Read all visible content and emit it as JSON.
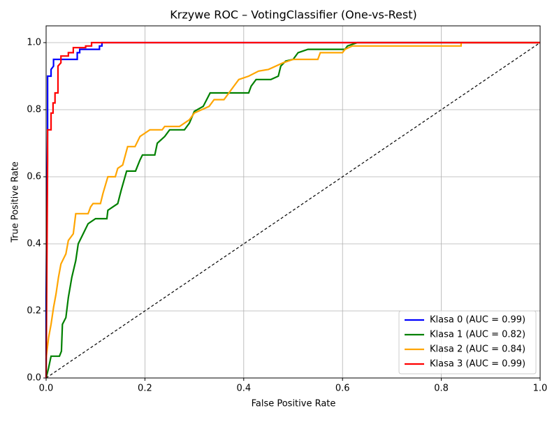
{
  "chart_data": {
    "type": "line",
    "title": "Krzywe ROC – VotingClassifier (One-vs-Rest)",
    "x_label": "False Positive Rate",
    "y_label": "True Positive Rate",
    "xlim": [
      0,
      1
    ],
    "ylim": [
      0,
      1.05
    ],
    "xticks": [
      {
        "value": 0,
        "label": "0.0"
      },
      0.2,
      0.4,
      0.6,
      0.8,
      {
        "value": 1,
        "label": "1.0"
      }
    ],
    "yticks": [
      {
        "value": 0,
        "label": "0.0"
      },
      0.2,
      0.4,
      0.6,
      0.8,
      {
        "value": 1,
        "label": "1.0"
      }
    ],
    "grid": true,
    "legend": "lower right",
    "series": [
      {
        "name": "Klasa 0 (AUC = 0.99)",
        "color": "blue",
        "x": [
          0,
          0,
          0.003,
          0.003,
          0.01,
          0.01,
          0.015,
          0.015,
          0.063,
          0.063,
          0.068,
          0.068,
          0.108,
          0.108,
          0.113,
          0.113,
          1
        ],
        "values": [
          0,
          0.24,
          0.75,
          0.9,
          0.9,
          0.92,
          0.93,
          0.95,
          0.95,
          0.97,
          0.97,
          0.98,
          0.98,
          0.99,
          0.99,
          1,
          1
        ]
      },
      {
        "name": "Klasa 1 (AUC = 0.82)",
        "color": "green",
        "x": [
          0,
          0.005,
          0.01,
          0.027,
          0.031,
          0.033,
          0.04,
          0.045,
          0.052,
          0.06,
          0.065,
          0.075,
          0.085,
          0.1,
          0.123,
          0.125,
          0.135,
          0.145,
          0.152,
          0.163,
          0.181,
          0.19,
          0.195,
          0.22,
          0.225,
          0.24,
          0.25,
          0.28,
          0.29,
          0.3,
          0.318,
          0.332,
          0.41,
          0.415,
          0.425,
          0.455,
          0.47,
          0.475,
          0.485,
          0.5,
          0.51,
          0.53,
          0.605,
          0.61,
          0.63,
          1
        ],
        "values": [
          0,
          0.03,
          0.065,
          0.065,
          0.08,
          0.16,
          0.18,
          0.24,
          0.3,
          0.35,
          0.4,
          0.43,
          0.46,
          0.475,
          0.475,
          0.5,
          0.51,
          0.52,
          0.56,
          0.617,
          0.617,
          0.65,
          0.665,
          0.665,
          0.7,
          0.72,
          0.74,
          0.74,
          0.76,
          0.795,
          0.81,
          0.85,
          0.85,
          0.87,
          0.89,
          0.89,
          0.9,
          0.93,
          0.945,
          0.95,
          0.97,
          0.98,
          0.98,
          0.99,
          1,
          1
        ]
      },
      {
        "name": "Klasa 2 (AUC = 0.84)",
        "color": "orange",
        "x": [
          0,
          0.005,
          0.01,
          0.015,
          0.02,
          0.025,
          0.03,
          0.04,
          0.045,
          0.055,
          0.06,
          0.085,
          0.09,
          0.095,
          0.11,
          0.115,
          0.125,
          0.14,
          0.145,
          0.155,
          0.165,
          0.18,
          0.19,
          0.21,
          0.235,
          0.24,
          0.27,
          0.28,
          0.29,
          0.3,
          0.33,
          0.34,
          0.36,
          0.37,
          0.38,
          0.39,
          0.41,
          0.43,
          0.45,
          0.48,
          0.5,
          0.55,
          0.555,
          0.6,
          0.605,
          0.62,
          0.84,
          0.84,
          1
        ],
        "values": [
          0.06,
          0.12,
          0.16,
          0.21,
          0.25,
          0.3,
          0.34,
          0.37,
          0.41,
          0.43,
          0.49,
          0.49,
          0.51,
          0.52,
          0.52,
          0.55,
          0.6,
          0.6,
          0.625,
          0.635,
          0.69,
          0.69,
          0.72,
          0.74,
          0.74,
          0.75,
          0.75,
          0.76,
          0.77,
          0.79,
          0.81,
          0.83,
          0.83,
          0.85,
          0.87,
          0.89,
          0.9,
          0.915,
          0.92,
          0.94,
          0.95,
          0.95,
          0.97,
          0.97,
          0.98,
          0.99,
          0.99,
          1,
          1
        ]
      },
      {
        "name": "Klasa 3 (AUC = 0.99)",
        "color": "red",
        "x": [
          0,
          0.003,
          0.003,
          0.01,
          0.01,
          0.014,
          0.014,
          0.018,
          0.018,
          0.024,
          0.024,
          0.03,
          0.03,
          0.045,
          0.045,
          0.055,
          0.055,
          0.08,
          0.08,
          0.092,
          0.092,
          1
        ],
        "values": [
          0,
          0.65,
          0.74,
          0.74,
          0.79,
          0.79,
          0.82,
          0.82,
          0.85,
          0.85,
          0.93,
          0.94,
          0.96,
          0.96,
          0.97,
          0.97,
          0.985,
          0.985,
          0.99,
          0.99,
          1,
          1
        ]
      }
    ]
  }
}
